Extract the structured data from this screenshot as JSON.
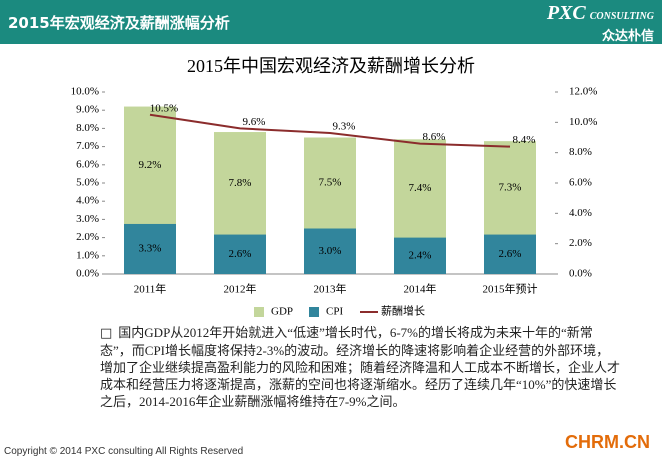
{
  "header": {
    "title": "2015年宏观经济及薪酬涨幅分析",
    "logo": "PXC",
    "logo_sub": "CONSULTING",
    "logo_cn": "众达朴信"
  },
  "chart_data": {
    "type": "bar_line",
    "title": "2015年中国宏观经济及薪酬增长分析",
    "categories": [
      "2011年",
      "2012年",
      "2013年",
      "2014年",
      "2015年预计"
    ],
    "series": [
      {
        "name": "GDP",
        "color": "#c3d69b",
        "kind": "bar",
        "values": [
          9.2,
          7.8,
          7.5,
          7.4,
          7.3
        ],
        "value_labels": [
          "9.2%",
          "7.8%",
          "7.5%",
          "7.4%",
          "7.3%"
        ]
      },
      {
        "name": "CPI",
        "color": "#31859c",
        "kind": "bar",
        "axis": "y2",
        "values": [
          3.3,
          2.6,
          3.0,
          2.4,
          2.6
        ],
        "value_labels": [
          "3.3%",
          "2.6%",
          "3.0%",
          "2.4%",
          "2.6%"
        ]
      },
      {
        "name": "薪酬增长",
        "color": "#8b2c2c",
        "kind": "line",
        "axis": "y2",
        "values": [
          10.5,
          9.6,
          9.3,
          8.6,
          8.4
        ],
        "value_labels": [
          "10.5%",
          "9.6%",
          "9.3%",
          "8.6%",
          "8.4%"
        ]
      }
    ],
    "ylim": [
      0,
      10
    ],
    "yticks": [
      {
        "value": 0,
        "label": "0.0%"
      },
      {
        "value": 1,
        "label": "1.0%"
      },
      {
        "value": 2,
        "label": "2.0%"
      },
      {
        "value": 3,
        "label": "3.0%"
      },
      {
        "value": 4,
        "label": "4.0%"
      },
      {
        "value": 5,
        "label": "5.0%"
      },
      {
        "value": 6,
        "label": "6.0%"
      },
      {
        "value": 7,
        "label": "7.0%"
      },
      {
        "value": 8,
        "label": "8.0%"
      },
      {
        "value": 9,
        "label": "9.0%"
      },
      {
        "value": 10,
        "label": "10.0%"
      }
    ],
    "y2lim": [
      0,
      12
    ],
    "y2ticks": [
      {
        "value": 0,
        "label": "0.0%"
      },
      {
        "value": 2,
        "label": "2.0%"
      },
      {
        "value": 4,
        "label": "4.0%"
      },
      {
        "value": 6,
        "label": "6.0%"
      },
      {
        "value": 8,
        "label": "8.0%"
      },
      {
        "value": 10,
        "label": "10.0%"
      },
      {
        "value": 12,
        "label": "12.0%"
      }
    ],
    "legend": "bottom",
    "grid": false
  },
  "paragraph": "国内GDP从2012年开始就进入“低速”增长时代，6-7%的增长将成为未来十年的“新常态”，而CPI增长幅度将保持2-3%的波动。经济增长的降速将影响着企业经营的外部环境，增加了企业继续提高盈利能力的风险和困难；随着经济降温和人工成本不断增长，企业人才成本和经营压力将逐渐提高，涨薪的空间也将逐渐缩水。经历了连续几年“10%”的快速增长之后，2014-2016年企业薪酬涨幅将维持在7-9%之间。",
  "footer": "Copyright © 2014 PXC consulting All Rights Reserved",
  "watermark": "CHRM.CN"
}
